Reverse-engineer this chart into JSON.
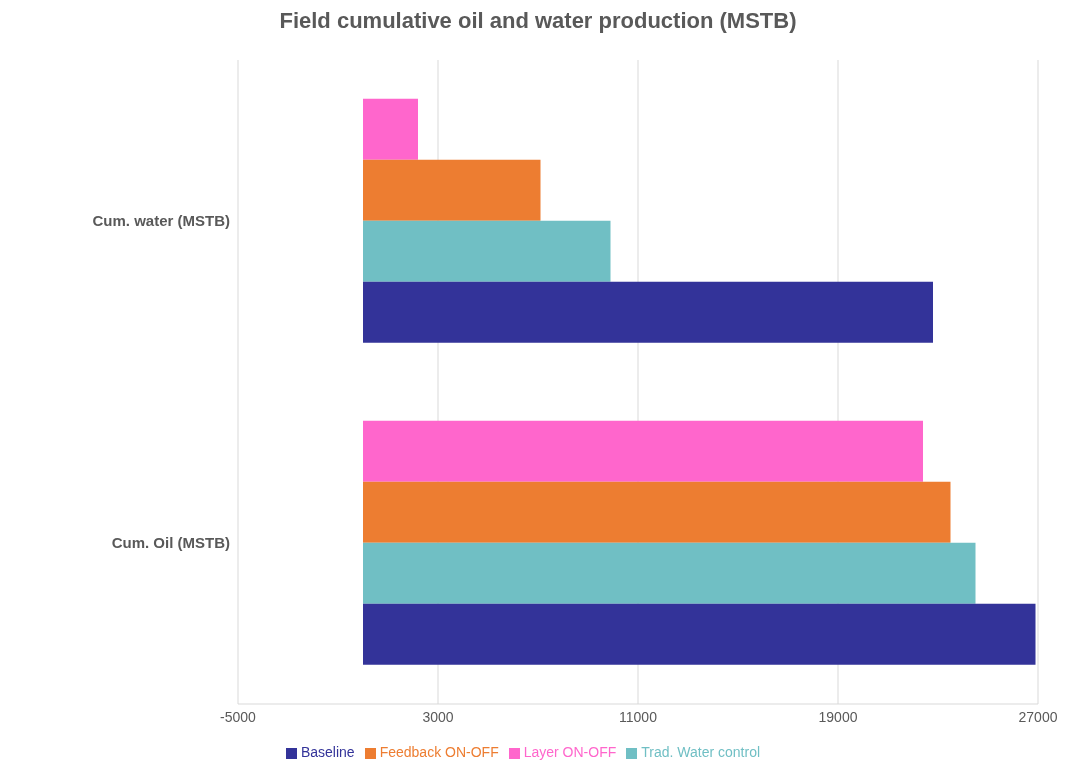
{
  "chart_data": {
    "type": "bar",
    "orientation": "horizontal",
    "title": "Field cumulative oil and water production (MSTB)",
    "categories": [
      "Cum. water (MSTB)",
      "Cum.  Oil (MSTB)"
    ],
    "series": [
      {
        "name": "Layer ON-OFF",
        "color": "#ff66cc",
        "values": [
          2200,
          22400
        ]
      },
      {
        "name": "Feedback ON-OFF",
        "color": "#ed7d31",
        "values": [
          7100,
          23500
        ]
      },
      {
        "name": "Trad. Water control",
        "color": "#70bfc4",
        "values": [
          9900,
          24500
        ]
      },
      {
        "name": "Baseline",
        "color": "#333399",
        "values": [
          22800,
          26900
        ]
      }
    ],
    "xlim": [
      -5000,
      27000
    ],
    "xticks": [
      -5000,
      3000,
      11000,
      19000,
      27000
    ],
    "grid": "x",
    "legend": "bottom"
  }
}
